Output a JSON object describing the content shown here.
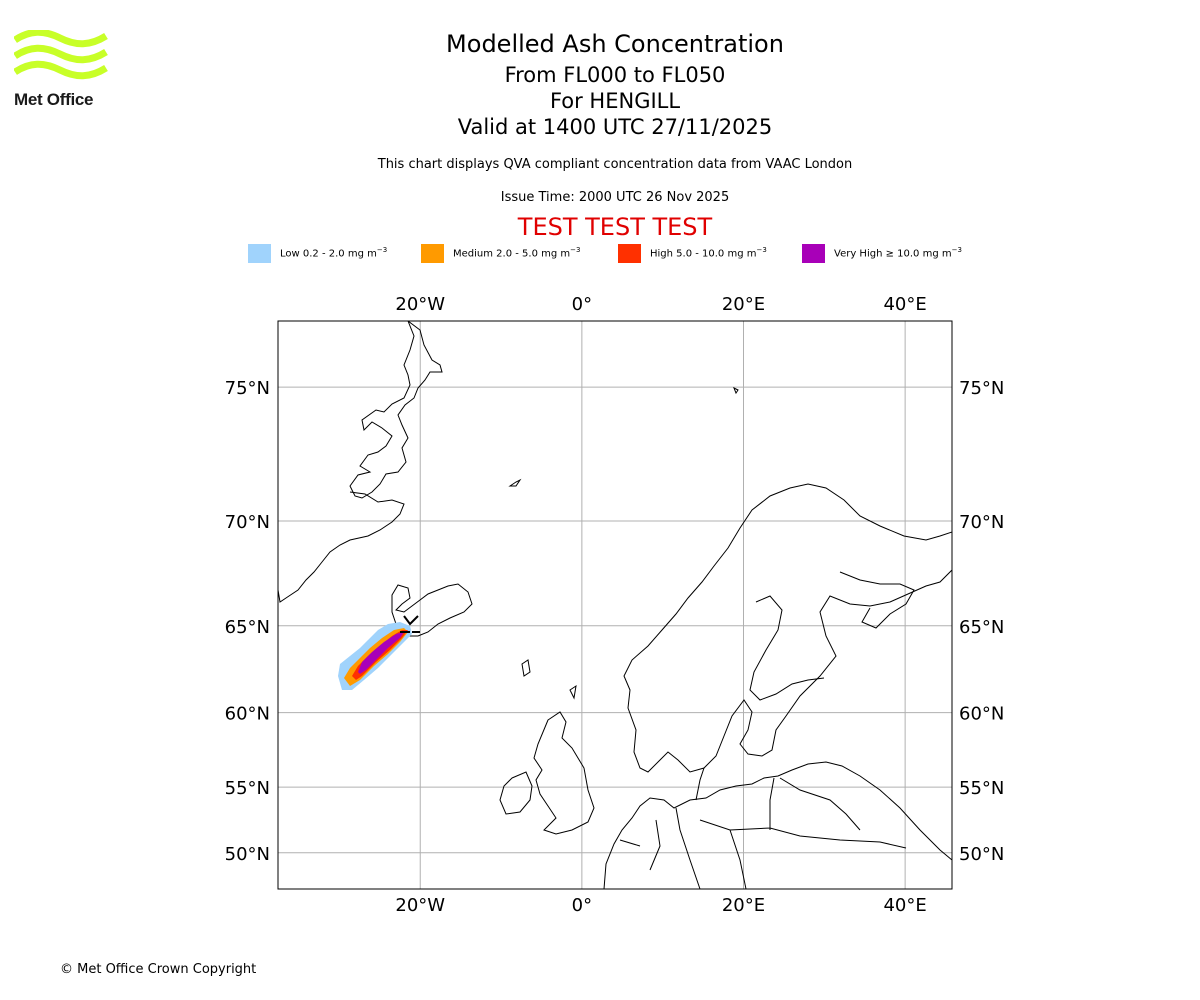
{
  "logo": {
    "brand": "Met Office",
    "icon": "met-office-wave-logo"
  },
  "header": {
    "title": "Modelled Ash Concentration",
    "levels": "From FL000 to FL050",
    "volcano": "For HENGILL",
    "valid": "Valid at 1400 UTC 27/11/2025",
    "compliance": "This chart displays QVA compliant concentration data from VAAC London",
    "issue_time": "Issue Time: 2000 UTC 26 Nov 2025",
    "test_banner": "TEST TEST TEST",
    "test_color": "#e00000"
  },
  "legend": [
    {
      "label": "Low 0.2 - 2.0 mg m",
      "exp": "−3",
      "color": "#a0d3fc"
    },
    {
      "label": "Medium 2.0 - 5.0 mg m",
      "exp": "−3",
      "color": "#ff9a00"
    },
    {
      "label": "High 5.0 - 10.0 mg m",
      "exp": "−3",
      "color": "#ff3000"
    },
    {
      "label": "Very High  ≥  10.0 mg m",
      "exp": "−3",
      "color": "#a800b8"
    }
  ],
  "map": {
    "lon_ticks": [
      "20°W",
      "0°",
      "20°E",
      "40°E"
    ],
    "lat_ticks": [
      "75°N",
      "70°N",
      "65°N",
      "60°N",
      "55°N",
      "50°N"
    ],
    "lon_values": [
      -20,
      0,
      20,
      40
    ],
    "lat_values": [
      75,
      70,
      65,
      60,
      55,
      50
    ],
    "extent": {
      "lon_min": -37.6,
      "lon_max": 45.8,
      "lat_min": 47,
      "lat_max": 77
    },
    "plume_levels": [
      "low",
      "medium",
      "high",
      "very-high"
    ]
  },
  "footer": {
    "copyright": "© Met Office Crown Copyright"
  }
}
